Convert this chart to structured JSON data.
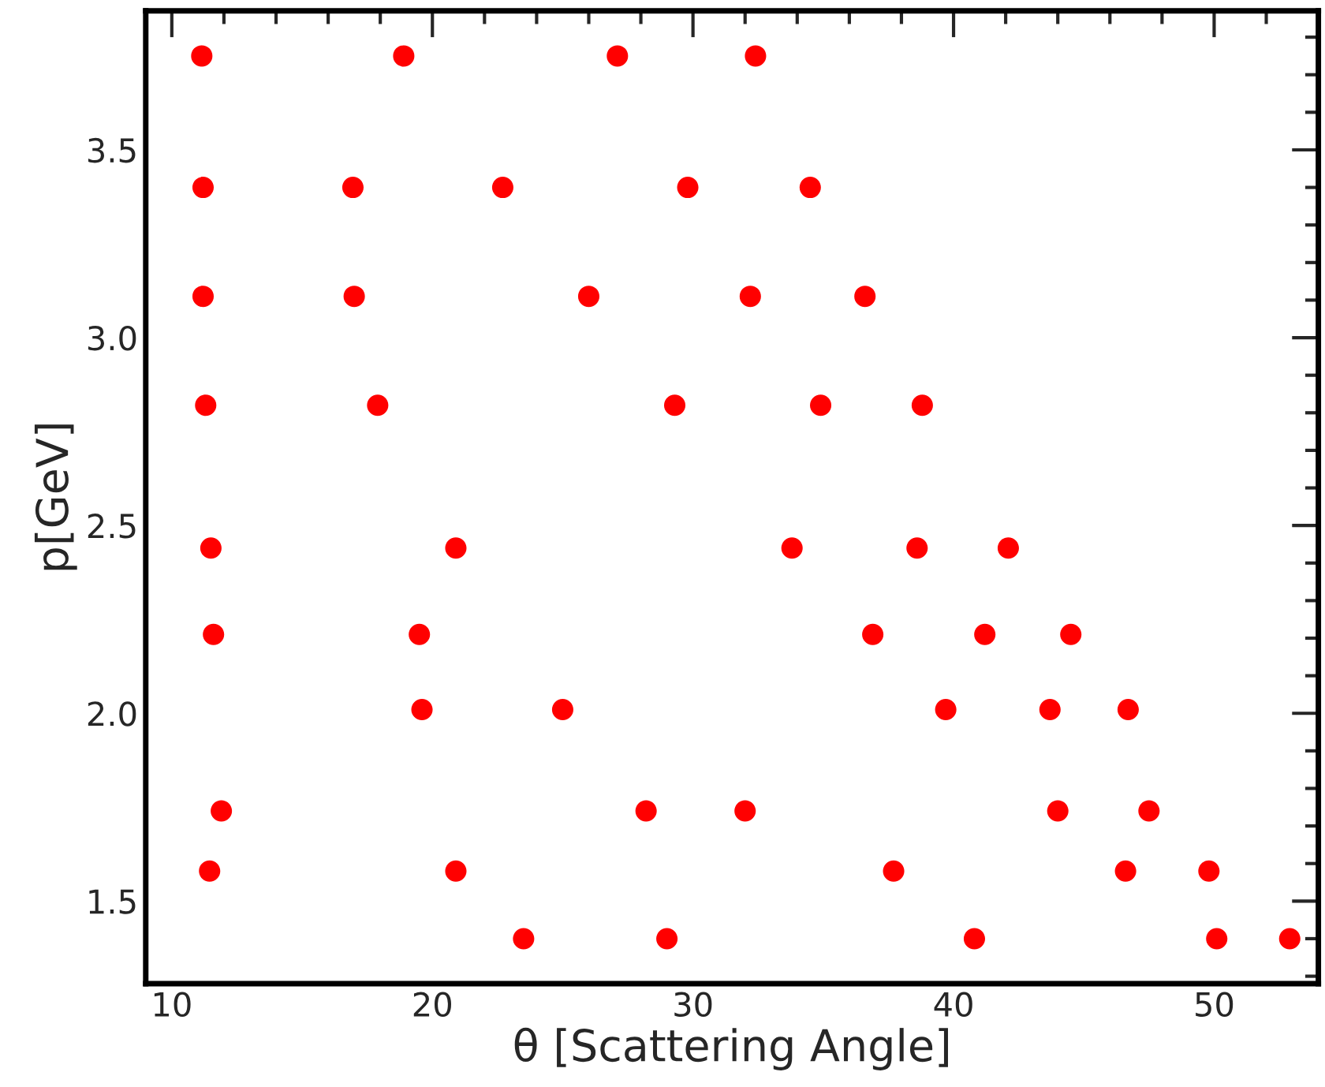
{
  "chart_data": {
    "type": "scatter",
    "xlabel": "θ [Scattering Angle]",
    "ylabel": "p[GeV]",
    "x": [
      11.15,
      18.9,
      27.1,
      32.4,
      11.2,
      16.95,
      22.7,
      29.8,
      34.5,
      11.2,
      17.0,
      26.0,
      32.2,
      36.6,
      11.3,
      17.9,
      29.3,
      34.9,
      38.8,
      11.5,
      20.9,
      33.8,
      38.6,
      42.1,
      11.6,
      19.5,
      36.9,
      41.2,
      44.5,
      19.6,
      25.0,
      39.7,
      43.7,
      46.7,
      11.9,
      28.2,
      32.0,
      44.0,
      47.5,
      11.45,
      20.9,
      37.7,
      46.6,
      49.8,
      23.5,
      29.0,
      40.8,
      50.1,
      52.9
    ],
    "values": [
      3.75,
      3.75,
      3.75,
      3.75,
      3.4,
      3.4,
      3.4,
      3.4,
      3.4,
      3.11,
      3.11,
      3.11,
      3.11,
      3.11,
      2.82,
      2.82,
      2.82,
      2.82,
      2.82,
      2.44,
      2.44,
      2.44,
      2.44,
      2.44,
      2.21,
      2.21,
      2.21,
      2.21,
      2.21,
      2.01,
      2.01,
      2.01,
      2.01,
      2.01,
      1.74,
      1.74,
      1.74,
      1.74,
      1.74,
      1.58,
      1.58,
      1.58,
      1.58,
      1.58,
      1.4,
      1.4,
      1.4,
      1.4,
      1.4
    ],
    "color": "#ff0000",
    "marker": "circle",
    "xlim": [
      9,
      54
    ],
    "xticks": [
      10,
      20,
      30,
      40,
      50
    ],
    "ylim": [
      1.28,
      3.87
    ],
    "yticks": [
      {
        "value": 1.5,
        "label": "1.5"
      },
      {
        "value": 2.0,
        "label": "2.0"
      },
      {
        "value": 2.5,
        "label": "2.5"
      },
      {
        "value": 3.0,
        "label": "3.0"
      },
      {
        "value": 3.5,
        "label": "3.5"
      }
    ],
    "grid": false,
    "legend": false
  }
}
